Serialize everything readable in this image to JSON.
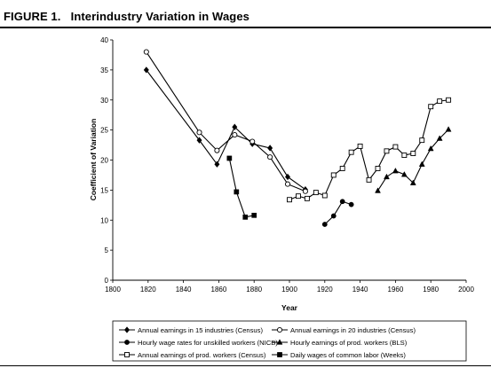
{
  "figure": {
    "label": "FIGURE 1.",
    "title": "Interindustry Variation in Wages"
  },
  "chart_data": {
    "type": "line",
    "title": "Interindustry Variation in Wages",
    "xlabel": "Year",
    "ylabel": "Coefficient of Variation",
    "xlim": [
      1800,
      2000
    ],
    "ylim": [
      0,
      40
    ],
    "x_ticks": [
      1800,
      1820,
      1840,
      1860,
      1880,
      1900,
      1920,
      1940,
      1960,
      1980,
      2000
    ],
    "y_ticks": [
      0,
      5,
      10,
      15,
      20,
      25,
      30,
      35,
      40
    ],
    "grid": false,
    "legend_position": "bottom",
    "series": [
      {
        "name": "Annual earnings in 15 industries (Census)",
        "marker": "diamond-filled",
        "x": [
          1819,
          1849,
          1859,
          1869,
          1879,
          1889,
          1899,
          1909
        ],
        "y": [
          35.0,
          23.3,
          19.3,
          25.5,
          22.7,
          22.0,
          17.2,
          15.1
        ]
      },
      {
        "name": "Annual earnings in 20 industries (Census)",
        "marker": "circle-open",
        "x": [
          1819,
          1849,
          1859,
          1869,
          1879,
          1889,
          1899,
          1909
        ],
        "y": [
          38.0,
          24.6,
          21.6,
          24.2,
          23.1,
          20.5,
          16.0,
          14.8
        ]
      },
      {
        "name": "Hourly wage rates for unskilled workers (NICB)",
        "marker": "circle-filled",
        "x": [
          1920,
          1925,
          1930,
          1935
        ],
        "y": [
          9.3,
          10.7,
          13.1,
          12.6
        ]
      },
      {
        "name": "Hourly earnings of prod. workers (BLS)",
        "marker": "triangle-filled",
        "x": [
          1950,
          1955,
          1960,
          1965,
          1970,
          1975,
          1980,
          1985,
          1990
        ],
        "y": [
          14.9,
          17.2,
          18.2,
          17.6,
          16.2,
          19.3,
          21.9,
          23.6,
          25.1
        ]
      },
      {
        "name": "Annual earnings of prod. workers  (Census)",
        "marker": "square-open",
        "x": [
          1900,
          1905,
          1910,
          1915,
          1920,
          1925,
          1930,
          1935,
          1940,
          1945,
          1950,
          1955,
          1960,
          1965,
          1970,
          1975,
          1980,
          1985,
          1990
        ],
        "y": [
          13.4,
          14.0,
          13.6,
          14.6,
          14.1,
          17.5,
          18.6,
          21.3,
          22.3,
          16.7,
          18.6,
          21.5,
          22.2,
          20.8,
          21.1,
          23.3,
          28.9,
          29.8,
          30.0
        ]
      },
      {
        "name": "Daily wages of common labor (Weeks)",
        "marker": "square-filled",
        "x": [
          1866,
          1870,
          1875,
          1880
        ],
        "y": [
          20.3,
          14.7,
          10.5,
          10.8
        ]
      }
    ]
  }
}
